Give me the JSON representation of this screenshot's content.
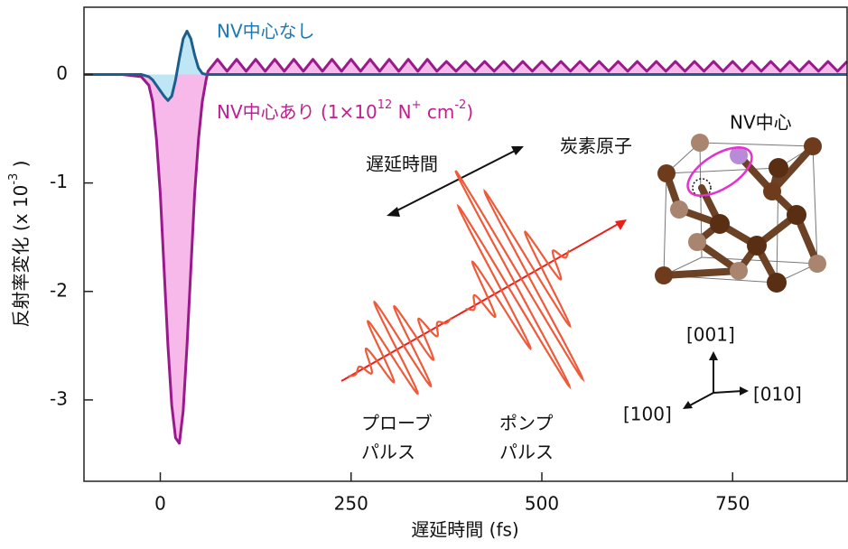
{
  "chart_data": {
    "type": "line",
    "x_label": "遅延時間 (fs)",
    "y_label": {
      "main": "反射率変化 (x 10",
      "exp": "-3",
      "end": " )"
    },
    "x": [
      -100,
      -50,
      -25,
      -15,
      -10,
      -5,
      0,
      5,
      10,
      15,
      20,
      25,
      30,
      35,
      40,
      45,
      50,
      55,
      60,
      62.5,
      75,
      87.5,
      100,
      112.5,
      125,
      137.5,
      150,
      162.5,
      175,
      187.5,
      200,
      212.5,
      225,
      237.5,
      250,
      262.5,
      275,
      287.5,
      300,
      312.5,
      325,
      337.5,
      350,
      362.5,
      375,
      387.5,
      400,
      412.5,
      425,
      437.5,
      450,
      462.5,
      475,
      487.5,
      500,
      512.5,
      525,
      537.5,
      550,
      562.5,
      575,
      587.5,
      600,
      612.5,
      625,
      637.5,
      650,
      662.5,
      675,
      687.5,
      700,
      712.5,
      725,
      737.5,
      750,
      762.5,
      775,
      787.5,
      800,
      812.5,
      825,
      837.5,
      850,
      862.5,
      875,
      887.5,
      900
    ],
    "series": [
      {
        "name": "NV中心なし",
        "color": "#1d5f8c",
        "fill": "#bfe6f5",
        "values": [
          0,
          0,
          0,
          -0.02,
          -0.05,
          -0.1,
          -0.15,
          -0.2,
          -0.24,
          -0.2,
          -0.05,
          0.15,
          0.33,
          0.4,
          0.33,
          0.18,
          0.06,
          0.01,
          0,
          0,
          0,
          0,
          0,
          0,
          0,
          0,
          0,
          0,
          0,
          0,
          0,
          0,
          0,
          0,
          0,
          0,
          0,
          0,
          0,
          0,
          0,
          0,
          0,
          0,
          0,
          0,
          0,
          0,
          0,
          0,
          0,
          0,
          0,
          0,
          0,
          0,
          0,
          0,
          0,
          0,
          0,
          0,
          0,
          0,
          0,
          0,
          0,
          0,
          0,
          0,
          0,
          0,
          0,
          0,
          0,
          0,
          0,
          0,
          0,
          0,
          0,
          0,
          0,
          0,
          0,
          0,
          0
        ]
      },
      {
        "name": {
          "main": "NV中心あり (1×10",
          "exp1": "12",
          "mid": " N",
          "exp2": "+",
          "mid2": " cm",
          "exp3": "-2",
          "end": ")"
        },
        "color": "#9a1a8c",
        "fill": "#f7b8ea",
        "values": [
          0,
          0,
          -0.02,
          -0.1,
          -0.25,
          -0.6,
          -1.1,
          -1.8,
          -2.5,
          -3.05,
          -3.35,
          -3.4,
          -3.1,
          -2.5,
          -1.8,
          -1.1,
          -0.6,
          -0.25,
          -0.05,
          0.03,
          0.14,
          0.03,
          0.14,
          0.03,
          0.14,
          0.03,
          0.14,
          0.03,
          0.14,
          0.03,
          0.14,
          0.03,
          0.14,
          0.03,
          0.14,
          0.03,
          0.14,
          0.03,
          0.14,
          0.03,
          0.14,
          0.03,
          0.14,
          0.03,
          0.12,
          0.03,
          0.12,
          0.03,
          0.12,
          0.03,
          0.12,
          0.03,
          0.12,
          0.03,
          0.12,
          0.03,
          0.12,
          0.03,
          0.12,
          0.03,
          0.12,
          0.03,
          0.12,
          0.03,
          0.12,
          0.03,
          0.12,
          0.03,
          0.12,
          0.03,
          0.12,
          0.03,
          0.12,
          0.03,
          0.12,
          0.03,
          0.12,
          0.03,
          0.12,
          0.03,
          0.12,
          0.03,
          0.12,
          0.03,
          0.12,
          0.03,
          0.12
        ]
      }
    ],
    "xlim": [
      -100,
      900
    ],
    "xticks": [
      0,
      250,
      500,
      750
    ],
    "ylim": [
      -3.75,
      0.62
    ],
    "yticks": [
      0,
      -1,
      -2,
      -3
    ],
    "inset": {
      "delay": "遅延時間",
      "probe": [
        "プローブ",
        "パルス"
      ],
      "pump": [
        "ポンプ",
        "パルス"
      ],
      "carbon": "炭素原子",
      "nv": "NV中心",
      "dir001": "[001]",
      "dir010": "[010]",
      "dir100": "[100]"
    }
  }
}
